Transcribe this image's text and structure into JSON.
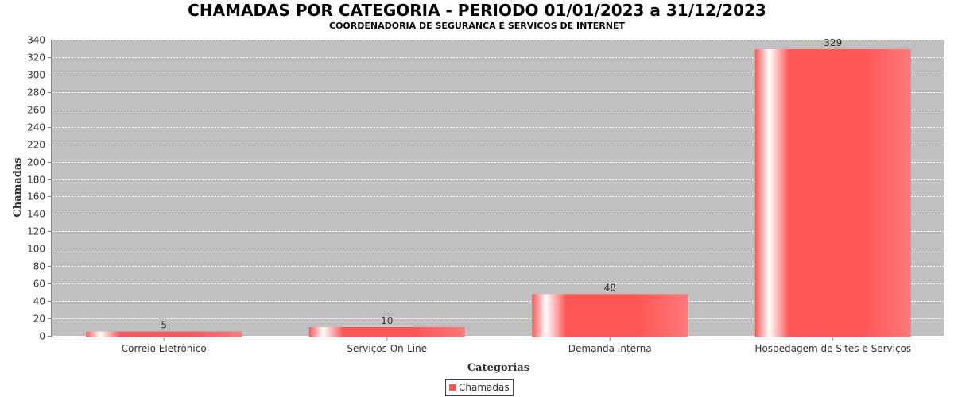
{
  "chart_data": {
    "type": "bar",
    "title": "CHAMADAS POR CATEGORIA - PERIODO 01/01/2023 a 31/12/2023",
    "subtitle": "COORDENADORIA DE SEGURANCA E SERVICOS DE INTERNET",
    "xlabel": "Categorias",
    "ylabel": "Chamadas",
    "categories": [
      "Correio Eletrônico",
      "Serviços On-Line",
      "Demanda Interna",
      "Hospedagem de Sites e Serviços"
    ],
    "series": [
      {
        "name": "Chamadas",
        "values": [
          5,
          10,
          48,
          329
        ]
      }
    ],
    "ylim": [
      0,
      340
    ],
    "ytick_step": 20,
    "grid": true,
    "legend_position": "bottom-center",
    "colors": {
      "bar": "#ff5555",
      "plot_background": "#c0c0c0",
      "gridline": "#ffffff"
    }
  }
}
